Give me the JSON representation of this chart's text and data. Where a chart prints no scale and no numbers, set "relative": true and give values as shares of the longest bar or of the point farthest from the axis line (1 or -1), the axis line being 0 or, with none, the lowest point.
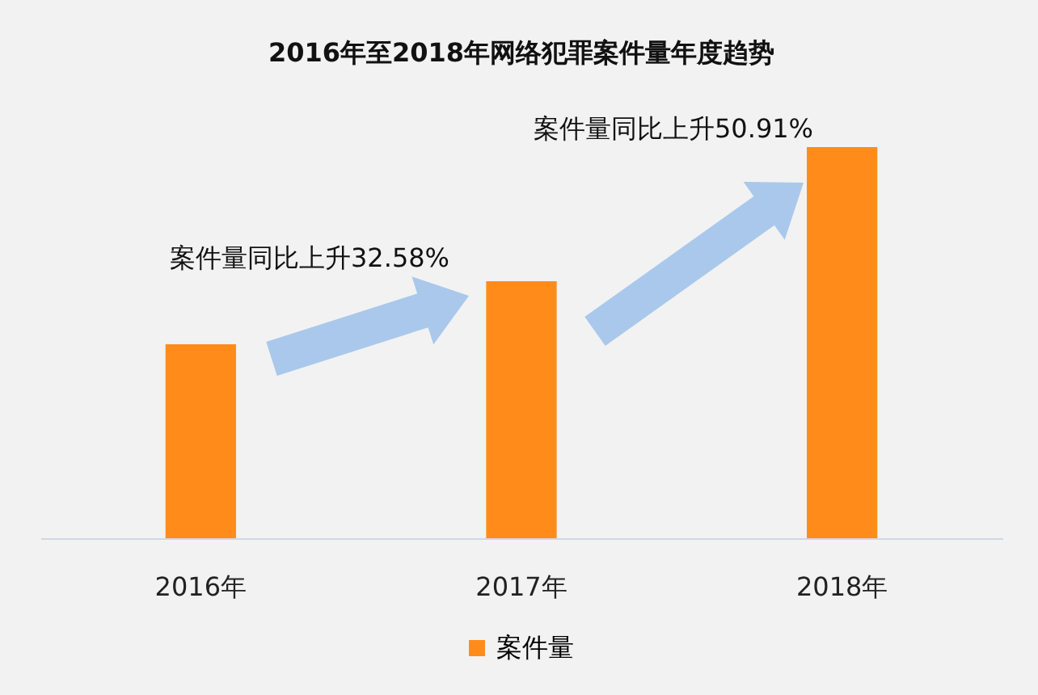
{
  "chart_data": {
    "type": "bar",
    "title": "2016年至2018年网络犯罪案件量年度趋势",
    "categories": [
      "2016年",
      "2017年",
      "2018年"
    ],
    "relative": true,
    "legend": "bottom",
    "series": [
      {
        "name": "案件量",
        "color": "#ff8c1a",
        "values": [
          0.496,
          0.657,
          1
        ]
      }
    ],
    "annotations": [
      "案件量同比上升32.58%",
      "案件量同比上升50.91%"
    ]
  }
}
